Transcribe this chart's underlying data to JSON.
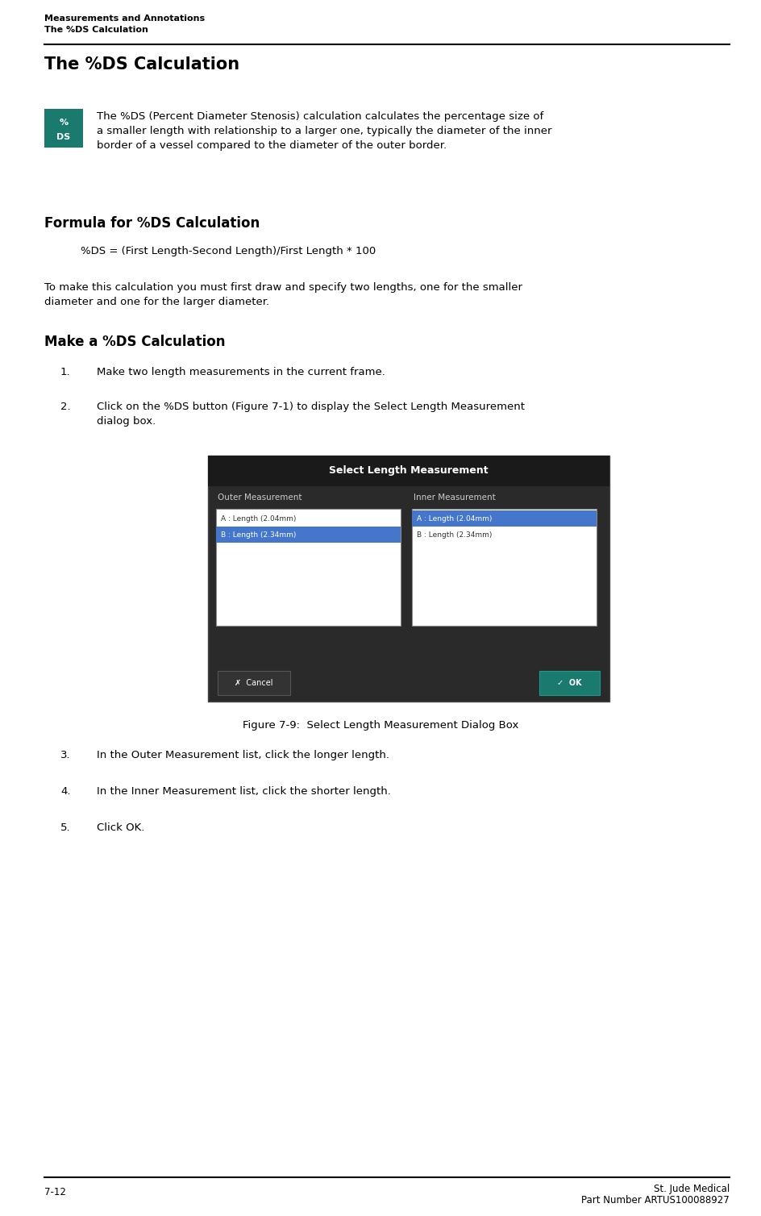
{
  "page_width": 9.45,
  "page_height": 15.08,
  "bg_color": "#ffffff",
  "header_line1": "Measurements and Annotations",
  "header_line2": "The %DS Calculation",
  "header_font_size": 8.0,
  "main_title": "The %DS Calculation",
  "main_title_font_size": 15,
  "icon_color": "#1a7a6e",
  "icon_text_line1": "%",
  "icon_text_line2": "DS",
  "intro_text": "The %DS (Percent Diameter Stenosis) calculation calculates the percentage size of\na smaller length with relationship to a larger one, typically the diameter of the inner\nborder of a vessel compared to the diameter of the outer border.",
  "intro_font_size": 9.5,
  "section1_title": "Formula for %DS Calculation",
  "section1_title_font_size": 12,
  "formula_text": "%DS = (First Length-Second Length)/First Length * 100",
  "formula_font_size": 9.5,
  "para1_text": "To make this calculation you must first draw and specify two lengths, one for the smaller\ndiameter and one for the larger diameter.",
  "para1_font_size": 9.5,
  "section2_title": "Make a %DS Calculation",
  "section2_title_font_size": 12,
  "step1_num": "1.",
  "step1_text": "Make two length measurements in the current frame.",
  "step2_num": "2.",
  "step2_text": "Click on the %DS button (Figure 7-1) to display the Select Length Measurement\ndialog box.",
  "step_font_size": 9.5,
  "dialog_title": "Select Length Measurement",
  "dialog_title_bg": "#1a1a1a",
  "dialog_title_color": "#ffffff",
  "dialog_col1_label": "Outer Measurement",
  "dialog_col2_label": "Inner Measurement",
  "dialog_col_label_color": "#cccccc",
  "dialog_bg": "#2a2a2a",
  "dialog_list_bg": "#ffffff",
  "dialog_selected_col1": "#4477cc",
  "dialog_selected_col2": "#4477cc",
  "dialog_item1_col1": "A : Length (2.04mm)",
  "dialog_item2_col1": "B : Length (2.34mm)",
  "dialog_item1_col2": "A : Length (2.04mm)",
  "dialog_item2_col2": "B : Length (2.34mm)",
  "dialog_button_cancel_bg": "#2a2a2a",
  "dialog_button_ok_bg": "#1a7a6e",
  "dialog_button_cancel": "Cancel",
  "dialog_button_ok": "OK",
  "fig_caption": "Figure 7-9:  Select Length Measurement Dialog Box",
  "fig_caption_font_size": 9.5,
  "step3_num": "3.",
  "step3_text": "In the Outer Measurement list, click the longer length.",
  "step4_num": "4.",
  "step4_text": "In the Inner Measurement list, click the shorter length.",
  "step5_num": "5.",
  "step5_text": "Click OK.",
  "footer_left": "7-12",
  "footer_right_line1": "St. Jude Medical",
  "footer_right_line2": "Part Number ARTUS100088927",
  "footer_font_size": 8.5,
  "link_color": "#4466aa",
  "text_color": "#000000",
  "header_text_color": "#000000"
}
